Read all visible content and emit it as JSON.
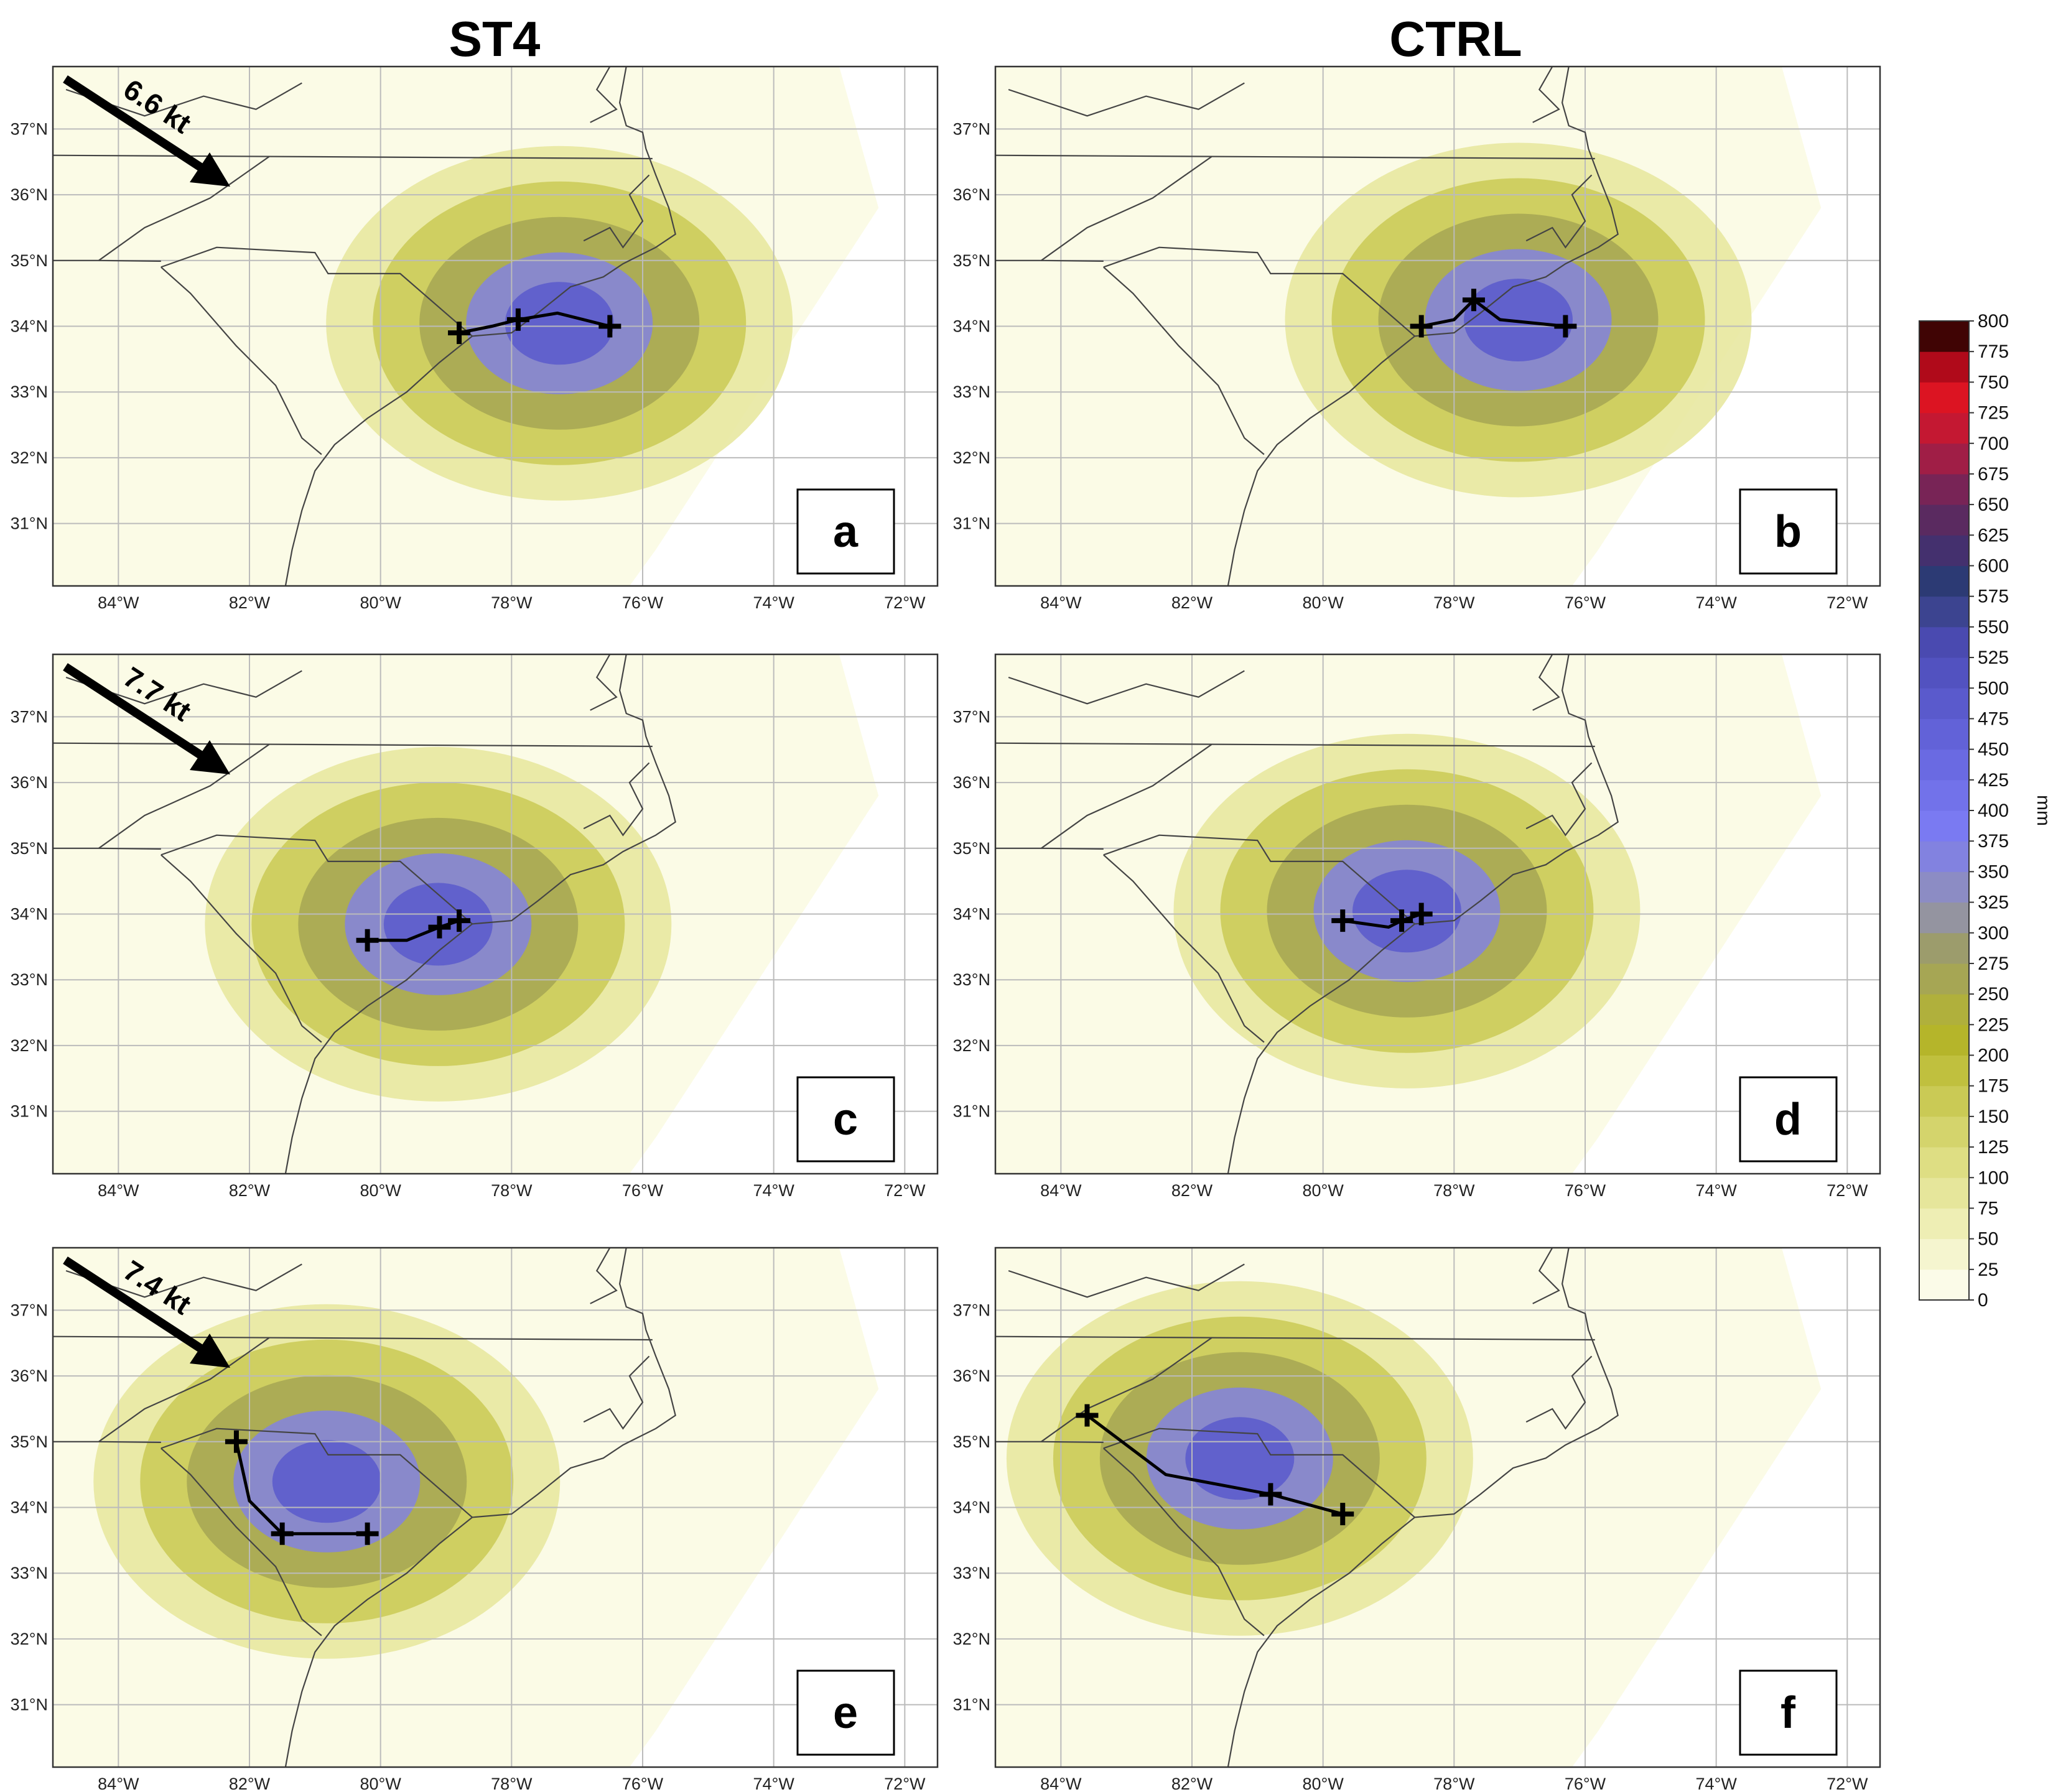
{
  "figure": {
    "column_titles": [
      "ST4",
      "CTRL"
    ],
    "lat_labels": [
      "37°N",
      "36°N",
      "35°N",
      "34°N",
      "33°N",
      "32°N",
      "31°N"
    ],
    "lon_labels": [
      "84°W",
      "82°W",
      "80°W",
      "78°W",
      "76°W",
      "74°W",
      "72°W"
    ],
    "colorbar": {
      "unit": "mm",
      "ticks": [
        "0",
        "25",
        "50",
        "75",
        "100",
        "125",
        "150",
        "175",
        "200",
        "225",
        "250",
        "275",
        "300",
        "325",
        "350",
        "375",
        "400",
        "425",
        "450",
        "475",
        "500",
        "525",
        "550",
        "575",
        "600",
        "625",
        "650",
        "675",
        "700",
        "725",
        "750",
        "775",
        "800"
      ],
      "colors": [
        "#fbfbe8",
        "#f5f5cf",
        "#eeeeb4",
        "#e6e69b",
        "#dede83",
        "#d4d46c",
        "#caca55",
        "#c0c03e",
        "#b5b52a",
        "#b0b03c",
        "#a6a654",
        "#9c9c6c",
        "#9494a0",
        "#8c8cc4",
        "#8282e0",
        "#7a7af2",
        "#7272ea",
        "#6a6ae2",
        "#6262d8",
        "#5a5acc",
        "#5252c0",
        "#4a4ab0",
        "#3c4490",
        "#2c3a74",
        "#44306e",
        "#5a2a60",
        "#782456",
        "#a01e46",
        "#c41832",
        "#dc1422",
        "#b00a1a",
        "#400404"
      ]
    },
    "panels": [
      {
        "id": "a",
        "letter": "a",
        "column": "ST4",
        "arrow_label": "6.6 kt",
        "track": [
          [
            -78.8,
            33.9
          ],
          [
            -78.3,
            34.0
          ],
          [
            -77.9,
            34.1
          ],
          [
            -77.3,
            34.2
          ],
          [
            -76.5,
            34.0
          ]
        ]
      },
      {
        "id": "b",
        "letter": "b",
        "column": "CTRL",
        "arrow_label": "",
        "track": [
          [
            -78.5,
            34.0
          ],
          [
            -78.0,
            34.1
          ],
          [
            -77.7,
            34.4
          ],
          [
            -77.3,
            34.1
          ],
          [
            -76.3,
            34.0
          ]
        ]
      },
      {
        "id": "c",
        "letter": "c",
        "column": "ST4",
        "arrow_label": "7.7 kt",
        "track": [
          [
            -80.2,
            33.6
          ],
          [
            -79.6,
            33.6
          ],
          [
            -79.1,
            33.8
          ],
          [
            -78.8,
            33.9
          ]
        ]
      },
      {
        "id": "d",
        "letter": "d",
        "column": "CTRL",
        "arrow_label": "",
        "track": [
          [
            -79.7,
            33.9
          ],
          [
            -79.0,
            33.8
          ],
          [
            -78.8,
            33.9
          ],
          [
            -78.5,
            34.0
          ]
        ]
      },
      {
        "id": "e",
        "letter": "e",
        "column": "ST4",
        "arrow_label": "7.4 kt",
        "track": [
          [
            -82.2,
            35.0
          ],
          [
            -82.0,
            34.1
          ],
          [
            -81.5,
            33.6
          ],
          [
            -80.2,
            33.6
          ]
        ]
      },
      {
        "id": "f",
        "letter": "f",
        "column": "CTRL",
        "arrow_label": "",
        "track": [
          [
            -83.6,
            35.4
          ],
          [
            -82.4,
            34.5
          ],
          [
            -80.8,
            34.2
          ],
          [
            -79.7,
            33.9
          ]
        ]
      }
    ]
  }
}
